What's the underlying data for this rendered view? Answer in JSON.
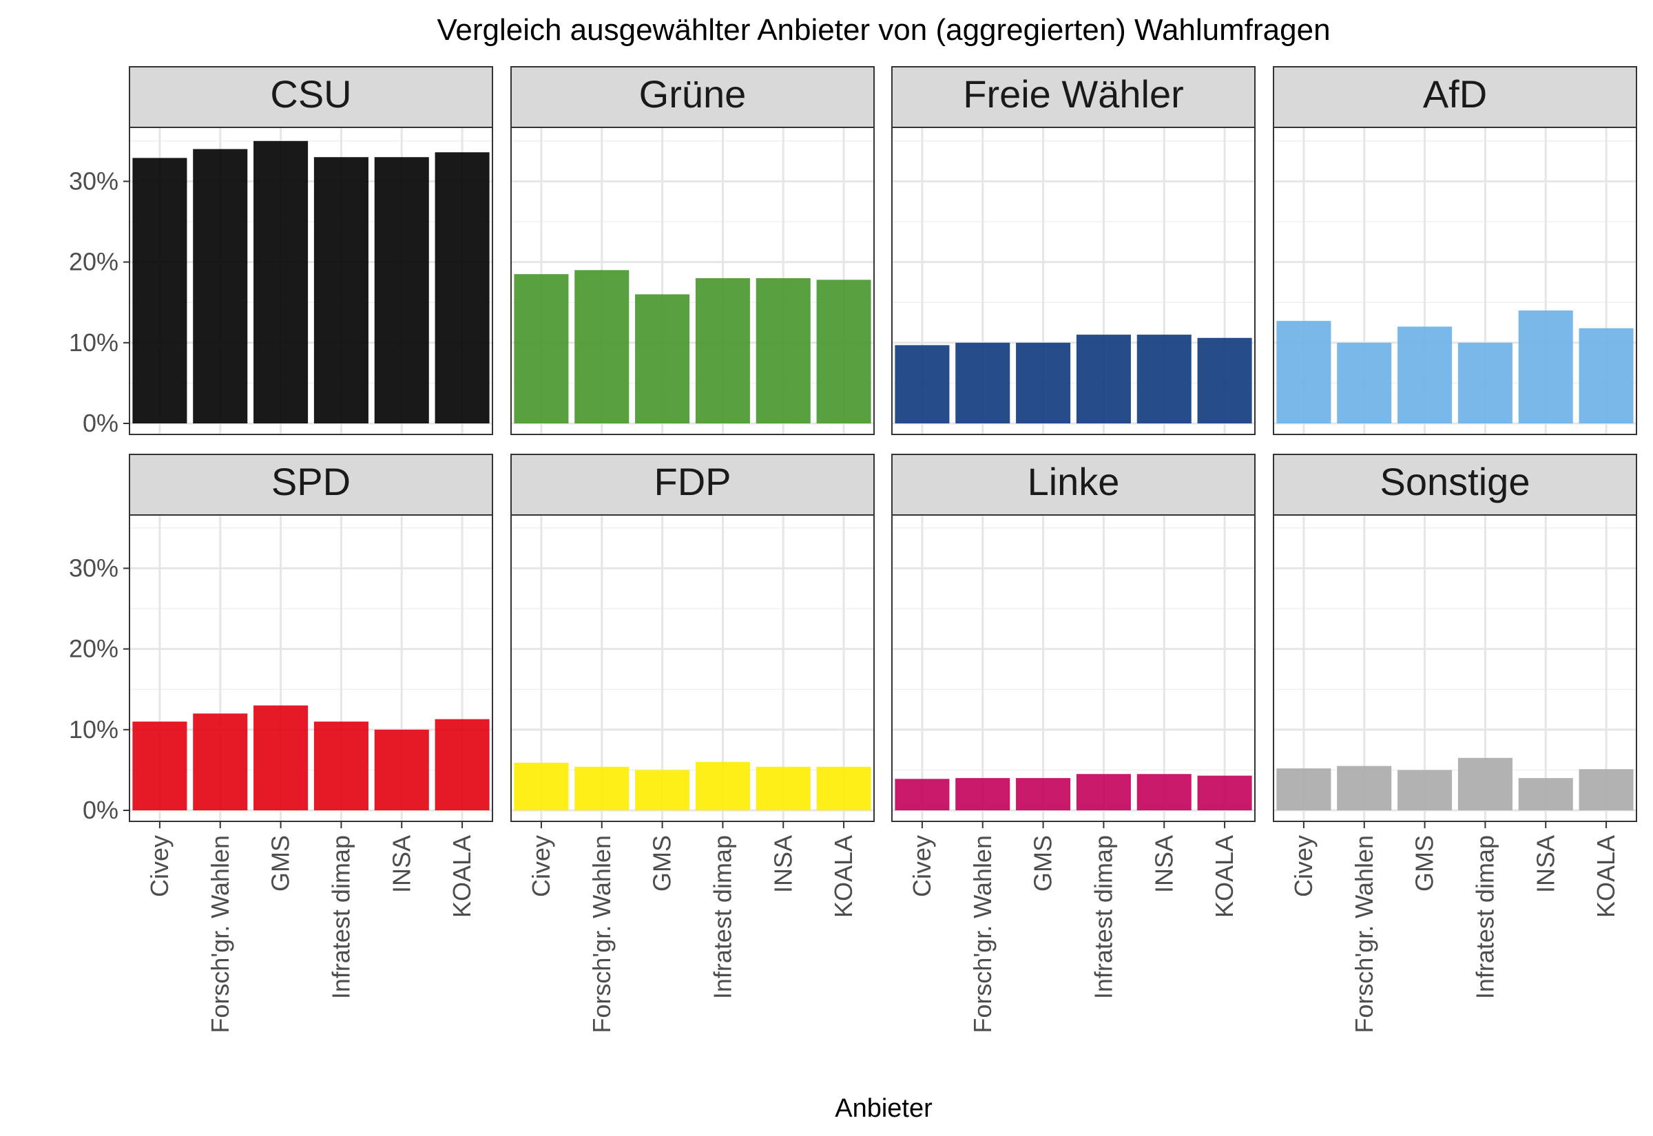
{
  "chart_data": {
    "type": "bar",
    "title": "Vergleich ausgewählter Anbieter von (aggregierten) Wahlumfragen",
    "xlabel": "Anbieter",
    "ylabel": "",
    "ylim": [
      0,
      36
    ],
    "y_ticks": [
      "0%",
      "10%",
      "20%",
      "30%"
    ],
    "y_tick_values": [
      0,
      10,
      20,
      30
    ],
    "categories": [
      "Civey",
      "Forsch'gr. Wahlen",
      "GMS",
      "Infratest dimap",
      "INSA",
      "KOALA"
    ],
    "grid": true,
    "panels": [
      {
        "name": "CSU",
        "color": "#000000",
        "values": [
          32.9,
          34.0,
          35.0,
          33.0,
          33.0,
          33.6
        ]
      },
      {
        "name": "Grüne",
        "color": "#46962b",
        "values": [
          18.5,
          19.0,
          16.0,
          18.0,
          18.0,
          17.8
        ]
      },
      {
        "name": "Freie Wähler",
        "color": "#0e3a7d",
        "values": [
          9.7,
          10.0,
          10.0,
          11.0,
          11.0,
          10.6
        ]
      },
      {
        "name": "AfD",
        "color": "#6cb0e8",
        "values": [
          12.7,
          10.0,
          12.0,
          10.0,
          14.0,
          11.8
        ]
      },
      {
        "name": "SPD",
        "color": "#e3000f",
        "values": [
          11.0,
          12.0,
          13.0,
          11.0,
          10.0,
          11.3
        ]
      },
      {
        "name": "FDP",
        "color": "#ffed00",
        "values": [
          5.9,
          5.4,
          5.0,
          6.0,
          5.4,
          5.4
        ]
      },
      {
        "name": "Linke",
        "color": "#c2005a",
        "values": [
          3.9,
          4.0,
          4.0,
          4.5,
          4.5,
          4.3
        ]
      },
      {
        "name": "Sonstige",
        "color": "#aaaaaa",
        "values": [
          5.2,
          5.5,
          5.0,
          6.5,
          4.0,
          5.1
        ]
      }
    ]
  }
}
